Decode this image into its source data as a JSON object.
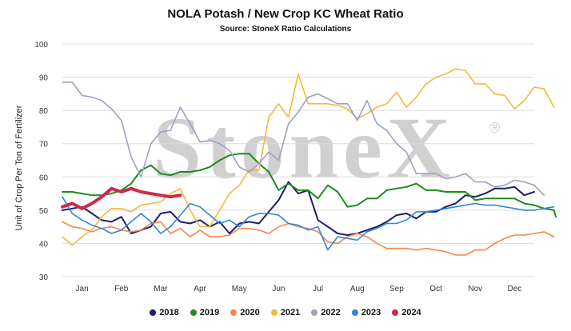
{
  "chart_data": {
    "type": "line",
    "title": "NOLA Potash / New Crop KC Wheat Ratio",
    "subtitle": "Source: StoneX Ratio Calculations",
    "ylabel": "Unit of Crop Per Ton of Fertilizer",
    "xlabel": "",
    "watermark": "StoneX",
    "watermark_mark": "®",
    "ylim": [
      30,
      100
    ],
    "yticks": [
      "30",
      "40",
      "50",
      "60",
      "70",
      "80",
      "90",
      "100"
    ],
    "xlim": [
      0,
      12
    ],
    "months": [
      "Jan",
      "Feb",
      "Mar",
      "Apr",
      "May",
      "Jun",
      "Jul",
      "Aug",
      "Sep",
      "Oct",
      "Nov",
      "Dec"
    ],
    "grid": true,
    "legend_position": "bottom",
    "series": [
      {
        "name": "2018",
        "color": "#1b1f6b",
        "width": 2,
        "points": [
          [
            0,
            50
          ],
          [
            0.25,
            50.5
          ],
          [
            0.5,
            51
          ],
          [
            0.75,
            49
          ],
          [
            1,
            47
          ],
          [
            1.25,
            46.5
          ],
          [
            1.5,
            48
          ],
          [
            1.75,
            43
          ],
          [
            2,
            44
          ],
          [
            2.25,
            45
          ],
          [
            2.5,
            49
          ],
          [
            2.75,
            49.5
          ],
          [
            3,
            46.5
          ],
          [
            3.25,
            46
          ],
          [
            3.5,
            47
          ],
          [
            3.75,
            45
          ],
          [
            4,
            46.5
          ],
          [
            4.25,
            43
          ],
          [
            4.5,
            46
          ],
          [
            4.75,
            46.5
          ],
          [
            5,
            46
          ],
          [
            5.25,
            49.5
          ],
          [
            5.5,
            53
          ],
          [
            5.75,
            58.5
          ],
          [
            6,
            55
          ],
          [
            6.25,
            56
          ],
          [
            6.5,
            47
          ],
          [
            6.75,
            45
          ],
          [
            7,
            43
          ],
          [
            7.25,
            42.5
          ],
          [
            7.5,
            43
          ],
          [
            7.75,
            44
          ],
          [
            8,
            45
          ],
          [
            8.25,
            46.5
          ],
          [
            8.5,
            48.5
          ],
          [
            8.75,
            49
          ],
          [
            9,
            47.5
          ],
          [
            9.25,
            49.5
          ],
          [
            9.5,
            49.5
          ],
          [
            9.75,
            51
          ],
          [
            10,
            52
          ],
          [
            10.25,
            54.5
          ],
          [
            10.5,
            54
          ],
          [
            10.75,
            55
          ],
          [
            11,
            56.5
          ],
          [
            11.25,
            56.5
          ],
          [
            11.5,
            57
          ],
          [
            11.75,
            54.5
          ],
          [
            12,
            55.5
          ]
        ]
      },
      {
        "name": "2019",
        "color": "#1c8c1c",
        "width": 2,
        "points": [
          [
            0,
            55.5
          ],
          [
            0.25,
            55.5
          ],
          [
            0.5,
            55
          ],
          [
            0.75,
            54.5
          ],
          [
            1,
            54.5
          ],
          [
            1.25,
            55
          ],
          [
            1.5,
            56
          ],
          [
            1.75,
            58
          ],
          [
            2,
            62
          ],
          [
            2.25,
            63.5
          ],
          [
            2.5,
            61
          ],
          [
            2.75,
            60.5
          ],
          [
            3,
            61.5
          ],
          [
            3.25,
            61.5
          ],
          [
            3.5,
            62
          ],
          [
            3.75,
            63
          ],
          [
            4,
            65
          ],
          [
            4.25,
            66.5
          ],
          [
            4.5,
            67
          ],
          [
            4.75,
            67
          ],
          [
            5,
            64
          ],
          [
            5.25,
            61.5
          ],
          [
            5.5,
            56
          ],
          [
            5.75,
            58
          ],
          [
            6,
            56
          ],
          [
            6.25,
            56
          ],
          [
            6.5,
            53.5
          ],
          [
            6.75,
            57.5
          ],
          [
            7,
            55.5
          ],
          [
            7.25,
            51
          ],
          [
            7.5,
            51.5
          ],
          [
            7.75,
            53.5
          ],
          [
            8,
            53.5
          ],
          [
            8.25,
            56
          ],
          [
            8.5,
            56.5
          ],
          [
            8.75,
            57
          ],
          [
            9,
            58
          ],
          [
            9.25,
            56
          ],
          [
            9.5,
            56
          ],
          [
            9.75,
            55.5
          ],
          [
            10,
            55.5
          ],
          [
            10.25,
            55.5
          ],
          [
            10.5,
            53
          ],
          [
            10.75,
            53.5
          ],
          [
            11,
            53.5
          ],
          [
            11.25,
            53.5
          ],
          [
            11.5,
            53.5
          ],
          [
            11.75,
            52
          ],
          [
            12,
            51.5
          ],
          [
            12.25,
            50.5
          ],
          [
            12.5,
            50
          ],
          [
            12.55,
            48
          ]
        ]
      },
      {
        "name": "2020",
        "color": "#f4864a",
        "width": 1.6,
        "points": [
          [
            0,
            46.5
          ],
          [
            0.25,
            45
          ],
          [
            0.5,
            44.5
          ],
          [
            0.75,
            43.5
          ],
          [
            1,
            44.5
          ],
          [
            1.25,
            45
          ],
          [
            1.5,
            44
          ],
          [
            1.75,
            43.5
          ],
          [
            2,
            44
          ],
          [
            2.25,
            46
          ],
          [
            2.5,
            46.5
          ],
          [
            2.75,
            43
          ],
          [
            3,
            44.5
          ],
          [
            3.25,
            42
          ],
          [
            3.5,
            44
          ],
          [
            3.75,
            42
          ],
          [
            4,
            42
          ],
          [
            4.25,
            42.5
          ],
          [
            4.5,
            44.5
          ],
          [
            4.75,
            44.5
          ],
          [
            5,
            44
          ],
          [
            5.25,
            43
          ],
          [
            5.5,
            45
          ],
          [
            5.75,
            46
          ],
          [
            6,
            45
          ],
          [
            6.25,
            44.5
          ],
          [
            6.5,
            43.5
          ],
          [
            6.75,
            40.5
          ],
          [
            7,
            40
          ],
          [
            7.25,
            42
          ],
          [
            7.5,
            43
          ],
          [
            7.75,
            42
          ],
          [
            8,
            40
          ],
          [
            8.25,
            38.5
          ],
          [
            8.5,
            38.5
          ],
          [
            8.75,
            38.5
          ],
          [
            9,
            38
          ],
          [
            9.25,
            38.5
          ],
          [
            9.5,
            38
          ],
          [
            9.75,
            37.5
          ],
          [
            10,
            36.5
          ],
          [
            10.25,
            36.5
          ],
          [
            10.5,
            38
          ],
          [
            10.75,
            38
          ],
          [
            11,
            40
          ],
          [
            11.25,
            41.5
          ],
          [
            11.5,
            42.5
          ],
          [
            11.75,
            42.5
          ],
          [
            12,
            43
          ],
          [
            12.25,
            43.5
          ],
          [
            12.5,
            42
          ]
        ]
      },
      {
        "name": "2021",
        "color": "#f2b93b",
        "width": 1.6,
        "points": [
          [
            0,
            42
          ],
          [
            0.25,
            39.5
          ],
          [
            0.5,
            42
          ],
          [
            0.75,
            44
          ],
          [
            1,
            48
          ],
          [
            1.25,
            50.5
          ],
          [
            1.5,
            50.5
          ],
          [
            1.75,
            49.5
          ],
          [
            2,
            51.5
          ],
          [
            2.25,
            52
          ],
          [
            2.5,
            52.5
          ],
          [
            2.75,
            55
          ],
          [
            3,
            56.5
          ],
          [
            3.25,
            50
          ],
          [
            3.5,
            45
          ],
          [
            3.75,
            45
          ],
          [
            4,
            50
          ],
          [
            4.25,
            55
          ],
          [
            4.5,
            57.5
          ],
          [
            4.75,
            62
          ],
          [
            5,
            62
          ],
          [
            5.25,
            78
          ],
          [
            5.5,
            82
          ],
          [
            5.75,
            78
          ],
          [
            6,
            91
          ],
          [
            6.25,
            82
          ],
          [
            6.5,
            82
          ],
          [
            6.75,
            82
          ],
          [
            7,
            81.5
          ],
          [
            7.25,
            80.5
          ],
          [
            7.5,
            77.5
          ],
          [
            7.75,
            79
          ],
          [
            8,
            81
          ],
          [
            8.25,
            82
          ],
          [
            8.5,
            85.5
          ],
          [
            8.75,
            81
          ],
          [
            9,
            84
          ],
          [
            9.25,
            88
          ],
          [
            9.5,
            90
          ],
          [
            9.75,
            91
          ],
          [
            10,
            92.5
          ],
          [
            10.25,
            92
          ],
          [
            10.5,
            88
          ],
          [
            10.75,
            88
          ],
          [
            11,
            85
          ],
          [
            11.25,
            84.5
          ],
          [
            11.5,
            80.5
          ],
          [
            11.75,
            83
          ],
          [
            12,
            87
          ],
          [
            12.25,
            86.5
          ],
          [
            12.5,
            81
          ]
        ]
      },
      {
        "name": "2022",
        "color": "#9d9fc3",
        "width": 1.6,
        "points": [
          [
            0,
            88.5
          ],
          [
            0.25,
            88.5
          ],
          [
            0.5,
            84.5
          ],
          [
            0.75,
            84
          ],
          [
            1,
            83
          ],
          [
            1.25,
            80.5
          ],
          [
            1.5,
            77
          ],
          [
            1.75,
            66
          ],
          [
            2,
            60
          ],
          [
            2.25,
            70
          ],
          [
            2.5,
            73.5
          ],
          [
            2.75,
            74
          ],
          [
            3,
            81
          ],
          [
            3.25,
            76
          ],
          [
            3.5,
            70.5
          ],
          [
            3.75,
            71
          ],
          [
            4,
            70
          ],
          [
            4.25,
            68
          ],
          [
            4.5,
            63
          ],
          [
            4.75,
            61.5
          ],
          [
            5,
            64
          ],
          [
            5.25,
            67.5
          ],
          [
            5.5,
            65
          ],
          [
            5.75,
            76
          ],
          [
            6,
            79.5
          ],
          [
            6.25,
            84
          ],
          [
            6.5,
            85
          ],
          [
            6.75,
            83.5
          ],
          [
            7,
            82
          ],
          [
            7.25,
            82
          ],
          [
            7.5,
            77
          ],
          [
            7.75,
            83
          ],
          [
            8,
            76
          ],
          [
            8.25,
            74
          ],
          [
            8.5,
            70
          ],
          [
            8.75,
            67.5
          ],
          [
            9,
            61
          ],
          [
            9.25,
            61
          ],
          [
            9.5,
            61
          ],
          [
            9.75,
            59.5
          ],
          [
            10,
            60
          ],
          [
            10.25,
            61
          ],
          [
            10.5,
            58.5
          ],
          [
            10.75,
            58.5
          ],
          [
            11,
            57
          ],
          [
            11.25,
            57.5
          ],
          [
            11.5,
            59
          ],
          [
            11.75,
            58.5
          ],
          [
            12,
            57.5
          ],
          [
            12.25,
            54.5
          ]
        ]
      },
      {
        "name": "2023",
        "color": "#2f86d9",
        "width": 1.6,
        "points": [
          [
            0,
            54
          ],
          [
            0.25,
            49
          ],
          [
            0.5,
            47
          ],
          [
            0.75,
            45.5
          ],
          [
            1,
            44.5
          ],
          [
            1.25,
            43
          ],
          [
            1.5,
            44
          ],
          [
            1.75,
            46.5
          ],
          [
            2,
            49
          ],
          [
            2.25,
            46.5
          ],
          [
            2.5,
            43
          ],
          [
            2.75,
            45
          ],
          [
            3,
            48.5
          ],
          [
            3.25,
            52
          ],
          [
            3.5,
            51
          ],
          [
            3.75,
            48.5
          ],
          [
            4,
            46
          ],
          [
            4.25,
            47
          ],
          [
            4.5,
            45
          ],
          [
            4.75,
            48
          ],
          [
            5,
            49
          ],
          [
            5.25,
            49
          ],
          [
            5.5,
            48.5
          ],
          [
            5.75,
            46
          ],
          [
            6,
            45.5
          ],
          [
            6.25,
            44
          ],
          [
            6.5,
            45
          ],
          [
            6.75,
            38
          ],
          [
            7,
            42
          ],
          [
            7.25,
            41.5
          ],
          [
            7.5,
            41
          ],
          [
            7.75,
            43.5
          ],
          [
            8,
            44.5
          ],
          [
            8.25,
            46
          ],
          [
            8.5,
            46
          ],
          [
            8.75,
            47
          ],
          [
            9,
            49.5
          ],
          [
            9.25,
            49.5
          ],
          [
            9.5,
            50
          ],
          [
            9.75,
            50.5
          ],
          [
            10,
            51
          ],
          [
            10.25,
            51.5
          ],
          [
            10.5,
            52
          ],
          [
            10.75,
            51.5
          ],
          [
            11,
            51.5
          ],
          [
            11.25,
            51
          ],
          [
            11.5,
            50.5
          ],
          [
            11.75,
            50
          ],
          [
            12,
            50
          ],
          [
            12.25,
            50.5
          ],
          [
            12.5,
            51
          ]
        ]
      },
      {
        "name": "2024",
        "color": "#cc2a4c",
        "width": 4,
        "points": [
          [
            0,
            51
          ],
          [
            0.25,
            52
          ],
          [
            0.5,
            50.5
          ],
          [
            0.75,
            52
          ],
          [
            1,
            54
          ],
          [
            1.25,
            56.5
          ],
          [
            1.5,
            55.5
          ],
          [
            1.75,
            56.5
          ],
          [
            2,
            55.5
          ],
          [
            2.25,
            55
          ],
          [
            2.5,
            54.5
          ],
          [
            2.75,
            54
          ],
          [
            3,
            54.5
          ]
        ]
      }
    ]
  }
}
